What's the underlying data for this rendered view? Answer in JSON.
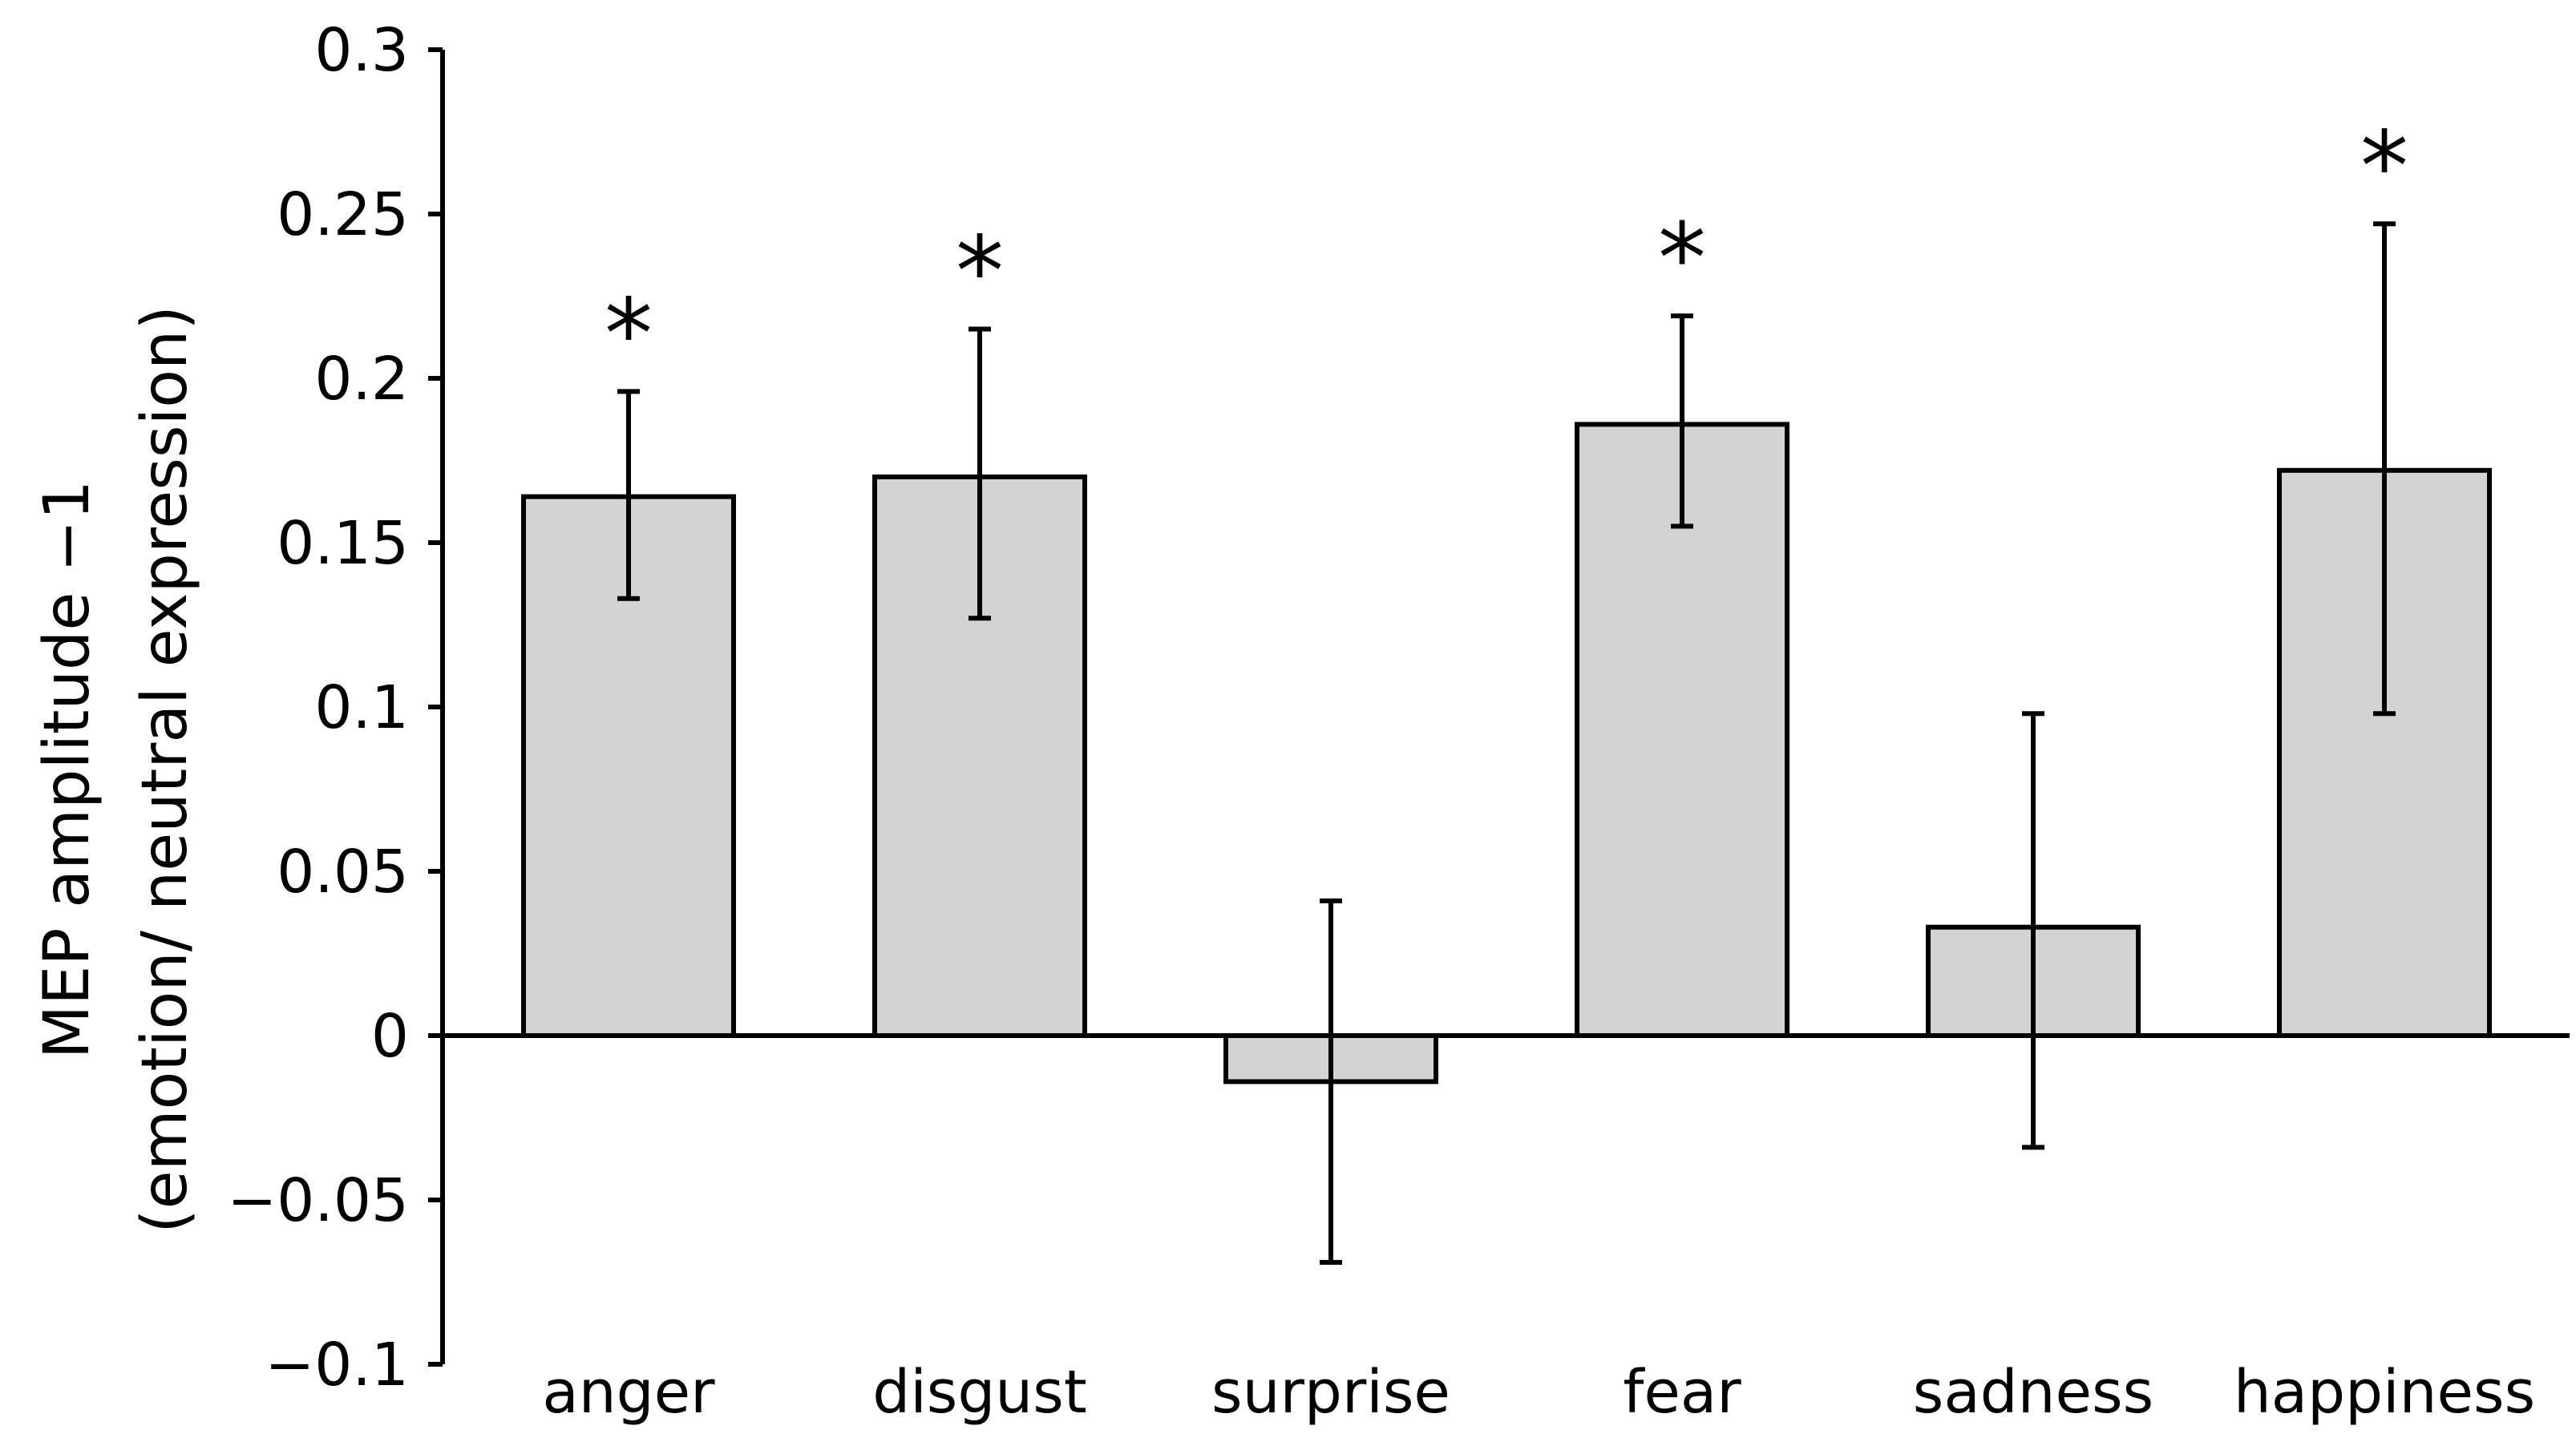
{
  "chart_data": {
    "type": "bar",
    "categories": [
      "anger",
      "disgust",
      "surprise",
      "fear",
      "sadness",
      "happiness"
    ],
    "values": [
      0.164,
      0.17,
      -0.014,
      0.186,
      0.033,
      0.172
    ],
    "error_low": [
      0.133,
      0.127,
      -0.069,
      0.155,
      -0.034,
      0.098
    ],
    "error_high": [
      0.196,
      0.215,
      0.041,
      0.219,
      0.098,
      0.247
    ],
    "significance": [
      "*",
      "*",
      "",
      "*",
      "",
      "*"
    ],
    "title": "",
    "xlabel": "",
    "ylabel_line1": "MEP amplitude −1",
    "ylabel_line2": "(emotion/ neutral expression)",
    "ylim": [
      -0.1,
      0.3
    ],
    "yticks": [
      0.3,
      0.25,
      0.2,
      0.15,
      0.1,
      0.05,
      0,
      -0.05,
      -0.1
    ],
    "ytick_labels": [
      "0.3",
      "0.25",
      "0.2",
      "0.15",
      "0.1",
      "0.05",
      "0",
      "−0.05",
      "−0.1"
    ],
    "grid": false,
    "legend": "none",
    "bar_color": "#d3d3d3",
    "edge_color": "#000000"
  }
}
